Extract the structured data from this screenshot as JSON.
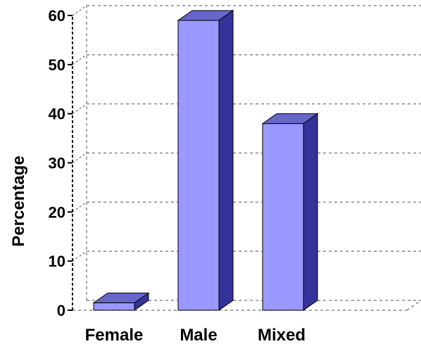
{
  "chart_data": {
    "type": "bar",
    "categories": [
      "Female",
      "Male",
      "Mixed"
    ],
    "values": [
      1.5,
      59,
      38
    ],
    "title": "",
    "xlabel": "",
    "ylabel": "Percentage",
    "ylim": [
      0,
      60
    ],
    "yticks": [
      0,
      10,
      20,
      30,
      40,
      50,
      60
    ],
    "tick_labels": [
      "0",
      "10",
      "20",
      "30",
      "40",
      "50",
      "60"
    ],
    "grid": true,
    "legend": "none",
    "style": "3d",
    "colors": {
      "bar_front": "#9999ff",
      "bar_top": "#6666cc",
      "bar_side": "#333399",
      "grid": "#888888",
      "axis": "#000000"
    }
  }
}
